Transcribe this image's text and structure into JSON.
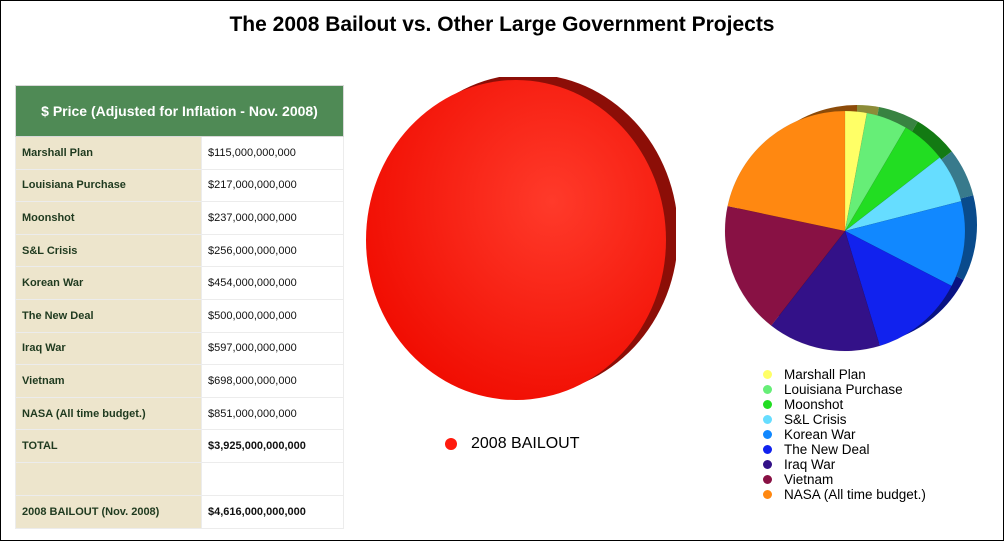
{
  "title": "The 2008 Bailout vs. Other Large Government Projects",
  "table": {
    "header": "$ Price (Adjusted for Inflation - Nov. 2008)",
    "rows": [
      {
        "name": "Marshall Plan",
        "value": "$115,000,000,000"
      },
      {
        "name": "Louisiana Purchase",
        "value": "$217,000,000,000"
      },
      {
        "name": "Moonshot",
        "value": "$237,000,000,000"
      },
      {
        "name": "S&L Crisis",
        "value": "$256,000,000,000"
      },
      {
        "name": "Korean War",
        "value": "$454,000,000,000"
      },
      {
        "name": "The New Deal",
        "value": "$500,000,000,000"
      },
      {
        "name": "Iraq War",
        "value": "$597,000,000,000"
      },
      {
        "name": "Vietnam",
        "value": "$698,000,000,000"
      },
      {
        "name": "NASA (All time budget.)",
        "value": "$851,000,000,000"
      }
    ],
    "total": {
      "name": "TOTAL",
      "value": "$3,925,000,000,000"
    },
    "bailout": {
      "name": "2008 BAILOUT (Nov. 2008)",
      "value": "$4,616,000,000,000"
    }
  },
  "chart_data": [
    {
      "type": "pie",
      "title": "",
      "labels": [
        "2008 BAILOUT"
      ],
      "values": [
        4616000000000
      ],
      "colors": [
        "#ff1a0d"
      ],
      "legend": "bottom"
    },
    {
      "type": "pie",
      "title": "",
      "labels": [
        "Marshall Plan",
        "Louisiana Purchase",
        "Moonshot",
        "S&L Crisis",
        "Korean War",
        "The New Deal",
        "Iraq War",
        "Vietnam",
        "NASA (All time budget.)"
      ],
      "values": [
        115000000000,
        217000000000,
        237000000000,
        256000000000,
        454000000000,
        500000000000,
        597000000000,
        698000000000,
        851000000000
      ],
      "colors": [
        "#ffff66",
        "#66ee77",
        "#22dd22",
        "#66ddff",
        "#1188ff",
        "#1122ee",
        "#331188",
        "#881144",
        "#ff8811"
      ],
      "legend": "bottom"
    }
  ]
}
